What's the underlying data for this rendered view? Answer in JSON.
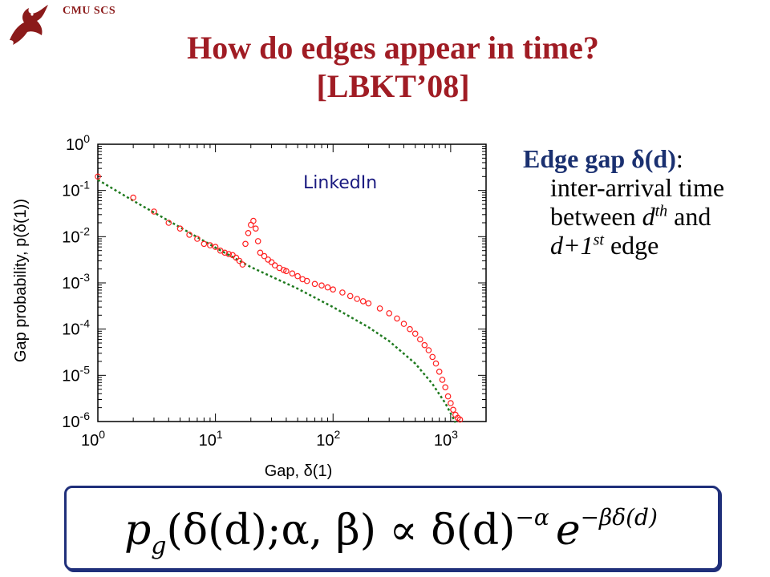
{
  "header": {
    "label": "CMU SCS",
    "logo_icon": "dragon-logo-icon"
  },
  "title": {
    "line1": "How do edges appear in time?",
    "line2": "[LBKT’08]"
  },
  "side_text": {
    "term": "Edge gap δ(d)",
    "colon": ":",
    "body_pre": "inter-arrival time between ",
    "d1": "d",
    "sup1": "th",
    "mid": " and ",
    "d2": "d+1",
    "sup2": "st",
    "body_post": " edge"
  },
  "formula": {
    "p": "p",
    "g": "g",
    "lhs": "(δ(d);α, β) ∝ δ(d)",
    "exp1": "−α",
    "e": "e",
    "exp2": "−βδ(d)"
  },
  "chart_data": {
    "type": "scatter",
    "xlabel": "Gap, δ(1)",
    "ylabel": "Gap probability, p(δ(1))",
    "x_scale": "log",
    "y_scale": "log",
    "xlim": [
      1,
      2000
    ],
    "ylim": [
      1e-06,
      1
    ],
    "x_ticks": [
      {
        "base": "10",
        "exp": "0"
      },
      {
        "base": "10",
        "exp": "1"
      },
      {
        "base": "10",
        "exp": "2"
      },
      {
        "base": "10",
        "exp": "3"
      }
    ],
    "y_ticks": [
      {
        "base": "10",
        "exp": "0"
      },
      {
        "base": "10",
        "exp": "-1"
      },
      {
        "base": "10",
        "exp": "-2"
      },
      {
        "base": "10",
        "exp": "-3"
      },
      {
        "base": "10",
        "exp": "-4"
      },
      {
        "base": "10",
        "exp": "-5"
      },
      {
        "base": "10",
        "exp": "-6"
      }
    ],
    "annotation": "LinkedIn",
    "grid": false,
    "series": [
      {
        "style": "scatter",
        "color": "#ff2020",
        "marker": "open-circle",
        "points": [
          [
            1,
            0.2
          ],
          [
            2,
            0.07
          ],
          [
            3,
            0.035
          ],
          [
            4,
            0.02
          ],
          [
            5,
            0.015
          ],
          [
            6,
            0.011
          ],
          [
            7,
            0.009
          ],
          [
            8,
            0.007
          ],
          [
            9,
            0.0065
          ],
          [
            10,
            0.006
          ],
          [
            11,
            0.005
          ],
          [
            12,
            0.0045
          ],
          [
            13,
            0.0042
          ],
          [
            14,
            0.004
          ],
          [
            15,
            0.0035
          ],
          [
            16,
            0.003
          ],
          [
            17,
            0.0025
          ],
          [
            18,
            0.007
          ],
          [
            19,
            0.012
          ],
          [
            20,
            0.018
          ],
          [
            21,
            0.022
          ],
          [
            22,
            0.015
          ],
          [
            23,
            0.008
          ],
          [
            24,
            0.0045
          ],
          [
            26,
            0.0038
          ],
          [
            28,
            0.0032
          ],
          [
            30,
            0.0028
          ],
          [
            32,
            0.0024
          ],
          [
            35,
            0.0021
          ],
          [
            38,
            0.0019
          ],
          [
            40,
            0.0018
          ],
          [
            45,
            0.0016
          ],
          [
            50,
            0.0014
          ],
          [
            55,
            0.0012
          ],
          [
            60,
            0.0011
          ],
          [
            70,
            0.00095
          ],
          [
            80,
            0.00088
          ],
          [
            90,
            0.0008
          ],
          [
            100,
            0.00072
          ],
          [
            120,
            0.00062
          ],
          [
            140,
            0.00052
          ],
          [
            160,
            0.00045
          ],
          [
            180,
            0.0004
          ],
          [
            200,
            0.00036
          ],
          [
            250,
            0.00028
          ],
          [
            300,
            0.00022
          ],
          [
            350,
            0.00017
          ],
          [
            400,
            0.00013
          ],
          [
            450,
            0.0001
          ],
          [
            500,
            8e-05
          ],
          [
            550,
            6e-05
          ],
          [
            600,
            4.5e-05
          ],
          [
            650,
            3.5e-05
          ],
          [
            700,
            2.5e-05
          ],
          [
            750,
            1.8e-05
          ],
          [
            800,
            1.2e-05
          ],
          [
            850,
            8e-06
          ],
          [
            900,
            5.5e-06
          ],
          [
            950,
            3.5e-06
          ],
          [
            1000,
            2.5e-06
          ],
          [
            1050,
            1.8e-06
          ],
          [
            1100,
            1.4e-06
          ],
          [
            1150,
            1.2e-06
          ],
          [
            1200,
            1.1e-06
          ]
        ]
      },
      {
        "style": "dotted-line",
        "color": "#1f7a1f",
        "points": [
          [
            1,
            0.17
          ],
          [
            2,
            0.06
          ],
          [
            5,
            0.016
          ],
          [
            10,
            0.0058
          ],
          [
            20,
            0.0022
          ],
          [
            50,
            0.00075
          ],
          [
            100,
            0.0003
          ],
          [
            200,
            0.00011
          ],
          [
            300,
            5.5e-05
          ],
          [
            500,
            1.8e-05
          ],
          [
            700,
            6.5e-06
          ],
          [
            900,
            2.5e-06
          ],
          [
            1100,
            9.5e-07
          ]
        ]
      }
    ]
  }
}
